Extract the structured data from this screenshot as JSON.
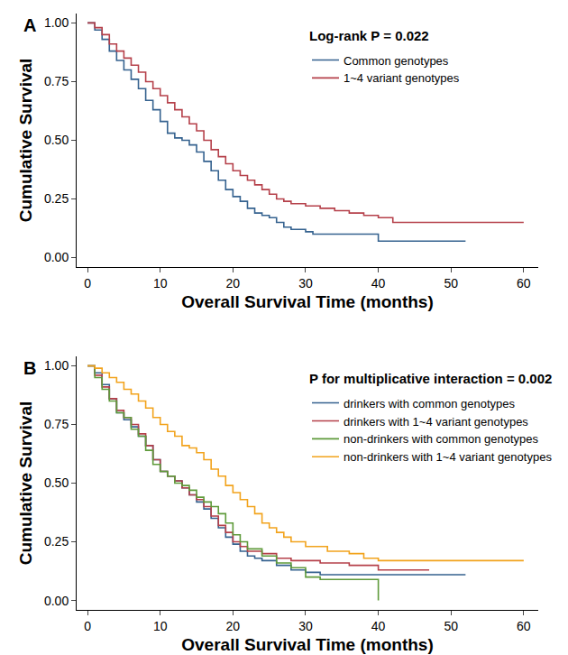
{
  "chart_data": [
    {
      "type": "step",
      "title": "A",
      "x_label": "Overall Survival Time (months)",
      "y_label": "Cumulative Survival",
      "annotations": [
        "Log-rank P = 0.022"
      ],
      "legend": "top right",
      "grid": false,
      "xlim": [
        -1.5,
        62
      ],
      "xticks": [
        0,
        10,
        20,
        30,
        40,
        50,
        60
      ],
      "ylim": [
        -0.04,
        1.04
      ],
      "yticks": [
        {
          "value": 0,
          "label": "0.00"
        },
        {
          "value": 0.25,
          "label": "0.25"
        },
        {
          "value": 0.5,
          "label": "0.50"
        },
        {
          "value": 0.75,
          "label": "0.75"
        },
        {
          "value": 1,
          "label": "1.00"
        }
      ],
      "series": [
        {
          "name": "Common genotypes",
          "color": "#35628f",
          "x": [
            0,
            1,
            2,
            3,
            4,
            5,
            6,
            7,
            8,
            9,
            10,
            11,
            12,
            13,
            14,
            15,
            16,
            17,
            18,
            19,
            20,
            21,
            22,
            23,
            24,
            25,
            26,
            27,
            28,
            30,
            31,
            40,
            52
          ],
          "values": [
            1,
            0.97,
            0.93,
            0.88,
            0.84,
            0.8,
            0.76,
            0.72,
            0.67,
            0.63,
            0.58,
            0.53,
            0.51,
            0.5,
            0.48,
            0.45,
            0.41,
            0.37,
            0.33,
            0.29,
            0.26,
            0.24,
            0.21,
            0.19,
            0.18,
            0.17,
            0.15,
            0.13,
            0.12,
            0.11,
            0.1,
            0.07,
            0.07
          ]
        },
        {
          "name": "1~4 variant genotypes",
          "color": "#b5404a",
          "x": [
            0,
            1,
            2,
            3,
            4,
            5,
            6,
            7,
            8,
            9,
            10,
            11,
            12,
            13,
            14,
            15,
            16,
            17,
            18,
            19,
            20,
            21,
            22,
            23,
            24,
            25,
            26,
            27,
            28,
            30,
            32,
            34,
            36,
            38,
            40,
            42,
            60
          ],
          "values": [
            1,
            0.98,
            0.95,
            0.91,
            0.88,
            0.85,
            0.82,
            0.79,
            0.75,
            0.72,
            0.69,
            0.66,
            0.63,
            0.6,
            0.57,
            0.54,
            0.5,
            0.46,
            0.43,
            0.4,
            0.37,
            0.35,
            0.33,
            0.31,
            0.29,
            0.27,
            0.25,
            0.24,
            0.23,
            0.22,
            0.21,
            0.2,
            0.19,
            0.18,
            0.17,
            0.15,
            0.15
          ]
        }
      ]
    },
    {
      "type": "step",
      "title": "B",
      "x_label": "Overall Survival Time (months)",
      "y_label": "Cumulative Survival",
      "annotations": [
        "P for multiplicative interaction = 0.002"
      ],
      "legend": "top right",
      "grid": false,
      "xlim": [
        -1.5,
        62
      ],
      "xticks": [
        0,
        10,
        20,
        30,
        40,
        50,
        60
      ],
      "ylim": [
        -0.04,
        1.04
      ],
      "yticks": [
        {
          "value": 0,
          "label": "0.00"
        },
        {
          "value": 0.25,
          "label": "0.25"
        },
        {
          "value": 0.5,
          "label": "0.50"
        },
        {
          "value": 0.75,
          "label": "0.75"
        },
        {
          "value": 1,
          "label": "1.00"
        }
      ],
      "series": [
        {
          "name": "drinkers with common genotypes",
          "color": "#35628f",
          "x": [
            0,
            1,
            2,
            3,
            4,
            5,
            6,
            7,
            8,
            9,
            10,
            11,
            12,
            13,
            14,
            15,
            16,
            17,
            18,
            19,
            20,
            21,
            22,
            23,
            24,
            26,
            28,
            30,
            32,
            52
          ],
          "values": [
            1,
            0.97,
            0.92,
            0.86,
            0.8,
            0.77,
            0.74,
            0.7,
            0.66,
            0.6,
            0.55,
            0.53,
            0.51,
            0.48,
            0.45,
            0.42,
            0.39,
            0.35,
            0.31,
            0.27,
            0.24,
            0.21,
            0.19,
            0.18,
            0.17,
            0.15,
            0.13,
            0.12,
            0.11,
            0.11
          ]
        },
        {
          "name": "drinkers with 1~4 variant genotypes",
          "color": "#b5404a",
          "x": [
            0,
            1,
            2,
            3,
            4,
            5,
            6,
            7,
            8,
            9,
            10,
            11,
            12,
            13,
            14,
            15,
            16,
            17,
            18,
            19,
            20,
            21,
            22,
            24,
            26,
            28,
            32,
            36,
            40,
            47
          ],
          "values": [
            1,
            0.96,
            0.91,
            0.86,
            0.81,
            0.78,
            0.75,
            0.71,
            0.66,
            0.6,
            0.55,
            0.53,
            0.51,
            0.48,
            0.45,
            0.43,
            0.4,
            0.36,
            0.32,
            0.29,
            0.25,
            0.23,
            0.21,
            0.2,
            0.18,
            0.17,
            0.16,
            0.15,
            0.13,
            0.13
          ]
        },
        {
          "name": "non-drinkers with common genotypes",
          "color": "#5e9a3a",
          "x": [
            0,
            1,
            2,
            3,
            4,
            5,
            6,
            7,
            8,
            9,
            10,
            11,
            12,
            13,
            14,
            15,
            16,
            17,
            18,
            19,
            20,
            21,
            22,
            24,
            26,
            28,
            30,
            32,
            38,
            40
          ],
          "values": [
            1,
            0.95,
            0.9,
            0.85,
            0.8,
            0.78,
            0.73,
            0.7,
            0.64,
            0.58,
            0.55,
            0.53,
            0.5,
            0.49,
            0.47,
            0.44,
            0.42,
            0.4,
            0.37,
            0.33,
            0.28,
            0.25,
            0.22,
            0.19,
            0.16,
            0.14,
            0.1,
            0.09,
            0.09,
            0
          ]
        },
        {
          "name": "non-drinkers with 1~4 variant genotypes",
          "color": "#f2a31c",
          "x": [
            0,
            1,
            2,
            3,
            4,
            5,
            6,
            7,
            8,
            9,
            10,
            11,
            12,
            13,
            14,
            15,
            16,
            17,
            18,
            19,
            20,
            21,
            22,
            23,
            24,
            25,
            26,
            27,
            28,
            30,
            33,
            36,
            38,
            40,
            60
          ],
          "values": [
            1,
            0.99,
            0.97,
            0.95,
            0.93,
            0.9,
            0.88,
            0.85,
            0.82,
            0.78,
            0.75,
            0.72,
            0.7,
            0.66,
            0.65,
            0.63,
            0.6,
            0.56,
            0.53,
            0.49,
            0.46,
            0.43,
            0.4,
            0.37,
            0.33,
            0.31,
            0.29,
            0.27,
            0.25,
            0.23,
            0.21,
            0.2,
            0.18,
            0.17,
            0.17
          ]
        }
      ]
    }
  ]
}
